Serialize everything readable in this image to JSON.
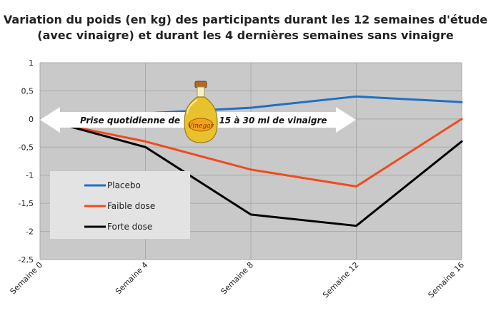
{
  "chart_data": {
    "type": "line",
    "title": [
      "Variation du poids (en kg) des participants durant les 12 semaines d'étude",
      "(avec vinaigre) et durant les 4 dernières semaines sans vinaigre"
    ],
    "categories": [
      "Semaine 0",
      "Semaine 4",
      "Semaine 8",
      "Semaine 12",
      "Semaine 16"
    ],
    "ylim": [
      -2.5,
      1
    ],
    "yticks": [
      "1",
      "0,5",
      "0",
      "-0,5",
      "-1",
      "-1,5",
      "-2",
      "-2,5"
    ],
    "grid": true,
    "legend_position": "bottom-left",
    "series": [
      {
        "name": "Placebo",
        "color": "#1f6fc6",
        "values": [
          -0.1,
          0.1,
          0.2,
          0.4,
          0.3
        ]
      },
      {
        "name": "Faible dose",
        "color": "#f04a1e",
        "values": [
          -0.1,
          -0.4,
          -0.9,
          -1.2,
          0.0
        ]
      },
      {
        "name": "Forte dose",
        "color": "#000000",
        "values": [
          -0.1,
          -0.5,
          -1.7,
          -1.9,
          -0.4
        ]
      }
    ],
    "annotation": {
      "left_text": "Prise quotidienne de",
      "right_text": "15 à 30 ml de vinaigre",
      "bottle_label": "Vinegar"
    }
  }
}
